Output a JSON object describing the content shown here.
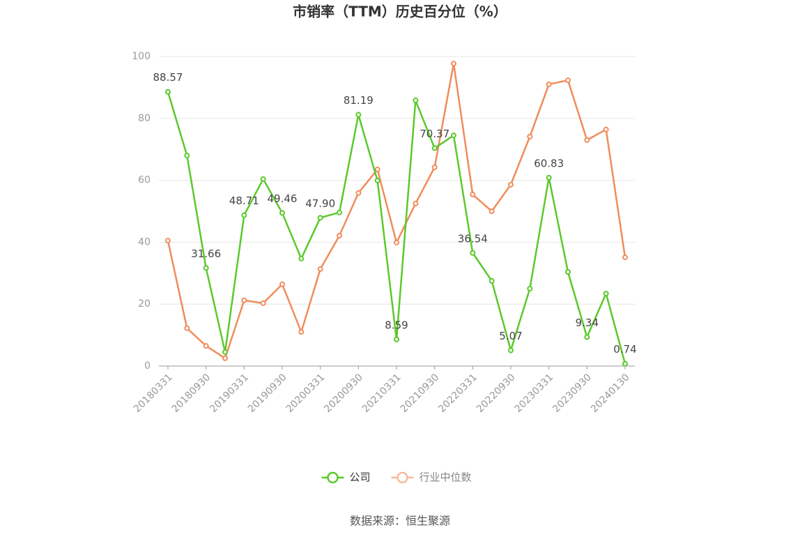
{
  "chart_data": {
    "type": "line",
    "title": "市销率（TTM）历史百分位（%）",
    "source": "数据来源：恒生聚源",
    "categories": [
      "20180331",
      null,
      "20180930",
      null,
      "20190331",
      null,
      "20190930",
      null,
      "20200331",
      null,
      "20200930",
      null,
      "20210331",
      null,
      "20210930",
      null,
      "20220331",
      null,
      "20220930",
      null,
      "20230331",
      null,
      "20230930",
      null,
      "20240130"
    ],
    "series": [
      {
        "name": "公司",
        "color": "#5ac92b",
        "values": [
          88.57,
          68.0,
          31.66,
          4.5,
          48.71,
          60.4,
          49.46,
          34.7,
          47.9,
          49.6,
          81.19,
          59.9,
          8.59,
          85.8,
          70.37,
          74.5,
          36.54,
          27.5,
          5.07,
          25.0,
          60.83,
          30.4,
          9.34,
          23.4,
          0.74
        ],
        "value_labels": [
          "88.57",
          null,
          "31.66",
          null,
          "48.71",
          null,
          "49.46",
          null,
          "47.90",
          null,
          "81.19",
          null,
          "8.59",
          null,
          "70.37",
          null,
          "36.54",
          null,
          "5.07",
          null,
          "60.83",
          null,
          "9.34",
          null,
          "0.74"
        ]
      },
      {
        "name": "行业中位数",
        "color": "#f08c5a",
        "values": [
          40.5,
          12.2,
          6.5,
          2.5,
          21.2,
          20.3,
          26.4,
          11.0,
          31.3,
          42.1,
          55.9,
          63.5,
          39.9,
          52.5,
          64.2,
          97.7,
          55.4,
          50.0,
          58.6,
          74.1,
          91.0,
          92.3,
          73.0,
          76.4,
          35.1
        ]
      }
    ],
    "ylim": [
      0,
      100
    ],
    "yticks": [
      0,
      20,
      40,
      60,
      80,
      100
    ],
    "grid": true
  }
}
